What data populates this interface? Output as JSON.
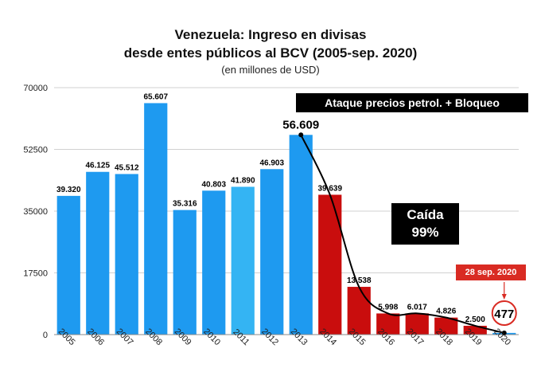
{
  "chart_data": {
    "type": "bar",
    "title_line1": "Venezuela: Ingreso en divisas",
    "title_line2": "desde entes públicos al BCV  (2005-sep. 2020)",
    "subtitle": "(en millones de USD)",
    "categories": [
      "2005",
      "2006",
      "2007",
      "2008",
      "2009",
      "2010",
      "2011",
      "2012",
      "2013",
      "2014",
      "2015",
      "2016",
      "2017",
      "2018",
      "2019",
      "2020"
    ],
    "values": [
      39320,
      46125,
      45512,
      65607,
      35316,
      40803,
      41890,
      46903,
      56609,
      39639,
      13538,
      5998,
      6017,
      4826,
      2500,
      477
    ],
    "value_labels": [
      "39.320",
      "46.125",
      "45.512",
      "65.607",
      "35.316",
      "40.803",
      "41.890",
      "46.903",
      "56.609",
      "39.639",
      "13.538",
      "5.998",
      "6.017",
      "4.826",
      "2.500",
      "477"
    ],
    "yticks": [
      0,
      17500,
      35000,
      52500,
      70000
    ],
    "ylim": [
      0,
      70000
    ],
    "grid": true,
    "colors": {
      "blue": "#1e9af0",
      "light_blue": "#34b4f3",
      "red": "#c90d0d",
      "trend": "#000000",
      "badge": "#d92b23"
    },
    "annotations": {
      "attack": "Ataque precios petrol. + Bloqueo",
      "fall_line1": "Caída",
      "fall_line2": "99%",
      "date": "28 sep. 2020"
    }
  }
}
